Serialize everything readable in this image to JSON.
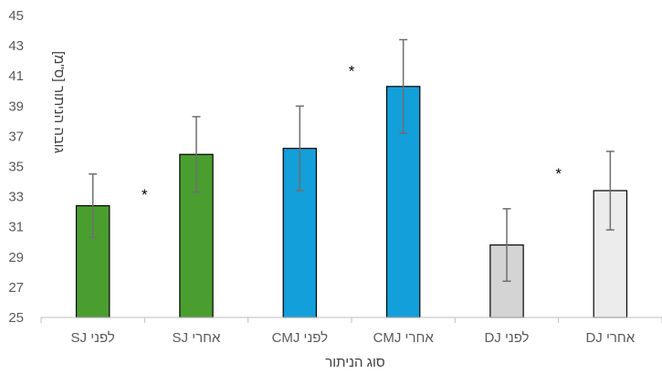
{
  "chart_data": {
    "type": "bar",
    "title": "",
    "xlabel": "סוג הניתור",
    "ylabel": "גובה הניתור [ס\"מ]",
    "ylim": [
      25,
      45
    ],
    "yticks": [
      25,
      27,
      29,
      31,
      33,
      35,
      37,
      39,
      41,
      43,
      45
    ],
    "grid": false,
    "legend": "none",
    "categories": [
      "לפני  SJ",
      "אחרי SJ",
      "לפני CMJ",
      "אחרי CMJ",
      "לפני DJ",
      "אחרי DJ"
    ],
    "values": [
      32.4,
      35.8,
      36.2,
      40.3,
      29.8,
      33.4
    ],
    "error_bars": [
      [
        30.3,
        34.5
      ],
      [
        33.3,
        38.3
      ],
      [
        33.4,
        39.0
      ],
      [
        37.2,
        43.4
      ],
      [
        27.4,
        32.2
      ],
      [
        30.8,
        36.0
      ]
    ],
    "colors": [
      "#4a9e2f",
      "#4a9e2f",
      "#139fd9",
      "#139fd9",
      "#d4d4d4",
      "#ececec"
    ],
    "annotations": [
      {
        "text": "*",
        "between": [
          0,
          1
        ],
        "y": 33.4
      },
      {
        "text": "*",
        "between": [
          2,
          3
        ],
        "y": 41.6
      },
      {
        "text": "*",
        "between": [
          4,
          5
        ],
        "y": 34.8
      }
    ]
  }
}
